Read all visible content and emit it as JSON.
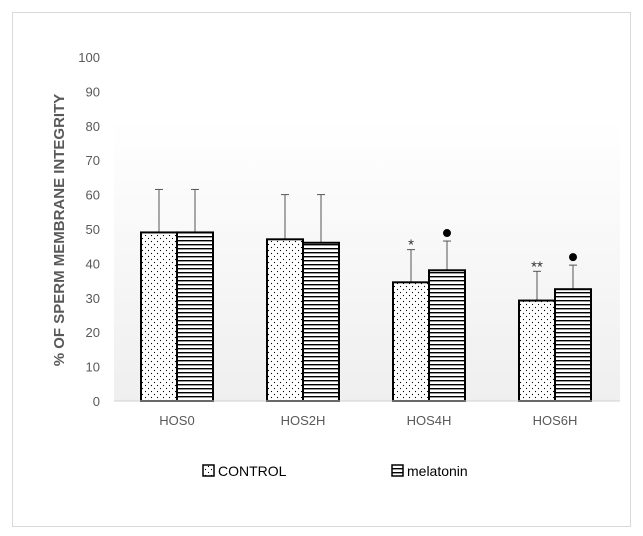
{
  "chart_data": {
    "type": "bar",
    "title": "",
    "xlabel": "",
    "ylabel": "% OF SPERM MEMBRANE INTEGRITY",
    "ylim": [
      0,
      100
    ],
    "yticks": [
      0,
      10,
      20,
      30,
      40,
      50,
      60,
      70,
      80,
      90,
      100
    ],
    "categories": [
      "HOS0",
      "HOS2H",
      "HOS4H",
      "HOS6H"
    ],
    "series": [
      {
        "name": "CONTROL",
        "pattern": "dots",
        "values": [
          49,
          47,
          34.5,
          29.2
        ],
        "errors": [
          12.5,
          13,
          9.5,
          8.5
        ],
        "annotations": [
          "",
          "",
          "*",
          "**"
        ]
      },
      {
        "name": "melatonin",
        "pattern": "horizontal-lines",
        "values": [
          49,
          46,
          38,
          32.5
        ],
        "errors": [
          12.5,
          14,
          8.5,
          7
        ],
        "annotations": [
          "",
          "",
          "●",
          "●"
        ]
      }
    ],
    "legend": "bottom",
    "grid": false
  }
}
